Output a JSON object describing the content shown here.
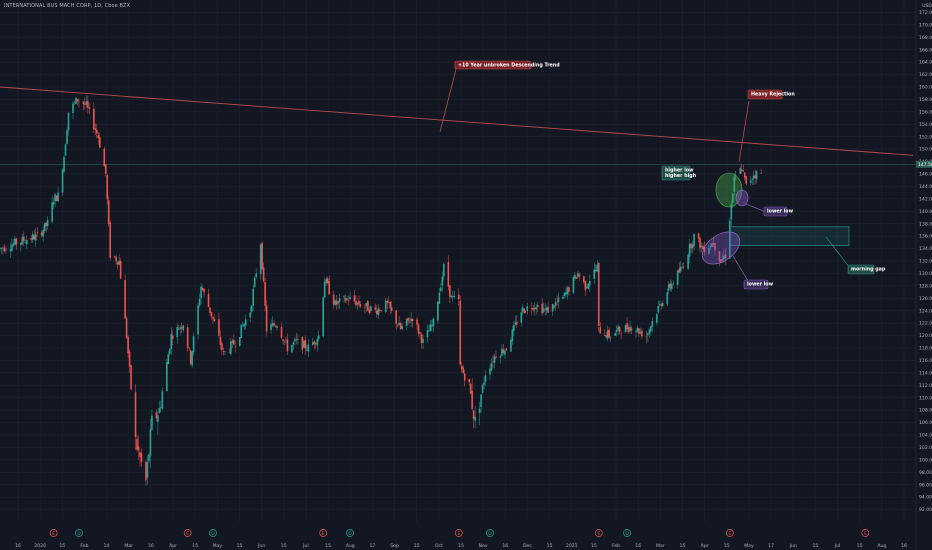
{
  "header": {
    "symbol": "INTERNATIONAL BUS MACH CORP, 1D, Cboe BZX"
  },
  "price_axis": {
    "currency": "USD",
    "last_price": "147.56"
  },
  "colors": {
    "background": "#131722",
    "grid": "#1e222d",
    "up": "#26a69a",
    "down": "#ef5350",
    "trend_line": "#b74a4d",
    "last_price_line": "#2b5f58",
    "axis_text": "#b2b5be"
  },
  "annotations": {
    "trend": "+10 Year unbroken Descending Trend",
    "rejection": "Heavy Rejection",
    "higher": "higher low\nhigher high",
    "lower_low_1": "lower low",
    "lower_low_2": "lower low",
    "gap": "morning gap"
  },
  "events": {
    "earnings_dates": [
      "2020-01-21",
      "2020-04-20",
      "2020-07-20",
      "2020-10-19",
      "2021-01-21",
      "2021-04-19",
      "2021-07-19"
    ],
    "dividend_dates": [
      "2020-02-07",
      "2020-05-07",
      "2020-08-07",
      "2020-11-09",
      "2021-02-09"
    ]
  },
  "chart_data": {
    "type": "candlestick",
    "y_ticks": [
      92.0,
      94.0,
      96.0,
      98.0,
      100.0,
      102.0,
      104.0,
      106.0,
      108.0,
      110.0,
      112.0,
      114.0,
      116.0,
      118.0,
      120.0,
      122.0,
      124.0,
      126.0,
      128.0,
      130.0,
      132.0,
      134.0,
      136.0,
      138.0,
      140.0,
      142.0,
      144.0,
      146.0,
      148.0,
      150.0,
      152.0,
      154.0,
      156.0,
      158.0,
      160.0,
      162.0,
      164.0,
      166.0,
      168.0,
      170.0,
      172.0
    ],
    "ylim": [
      90,
      174
    ],
    "x_ticks": [
      "16",
      "2020",
      "15",
      "Feb",
      "14",
      "Mar",
      "16",
      "Apr",
      "15",
      "May",
      "15",
      "Jun",
      "15",
      "Jul",
      "15",
      "Aug",
      "17",
      "Sep",
      "15",
      "Oct",
      "15",
      "Nov",
      "16",
      "Dec",
      "15",
      "2021",
      "15",
      "Feb",
      "16",
      "Mar",
      "15",
      "Apr",
      "15",
      "May",
      "17",
      "Jun",
      "15",
      "Jul",
      "15",
      "Aug",
      "16"
    ],
    "x_range": [
      "2019-12-16",
      "2021-08-22"
    ],
    "last_price": 147.56,
    "trend_line": {
      "start": [
        "2019-12-16",
        160.0
      ],
      "end": [
        "2021-08-20",
        149.0
      ]
    },
    "anchors": [
      [
        "2019-12-16",
        134.0
      ],
      [
        "2020-01-03",
        135.5
      ],
      [
        "2020-01-10",
        136.0
      ],
      [
        "2020-01-17",
        138.0
      ],
      [
        "2020-01-21",
        142.0
      ],
      [
        "2020-01-24",
        142.5
      ],
      [
        "2020-01-28",
        149.0
      ],
      [
        "2020-01-31",
        156.0
      ],
      [
        "2020-02-06",
        158.0
      ],
      [
        "2020-02-12",
        157.0
      ],
      [
        "2020-02-20",
        152.0
      ],
      [
        "2020-02-25",
        146.0
      ],
      [
        "2020-02-28",
        133.0
      ],
      [
        "2020-03-05",
        132.0
      ],
      [
        "2020-03-10",
        120.0
      ],
      [
        "2020-03-16",
        103.0
      ],
      [
        "2020-03-23",
        96.5
      ],
      [
        "2020-03-27",
        106.0
      ],
      [
        "2020-04-01",
        108.0
      ],
      [
        "2020-04-09",
        120.0
      ],
      [
        "2020-04-17",
        122.0
      ],
      [
        "2020-04-22",
        116.0
      ],
      [
        "2020-04-29",
        128.0
      ],
      [
        "2020-05-08",
        122.0
      ],
      [
        "2020-05-14",
        117.0
      ],
      [
        "2020-05-22",
        119.0
      ],
      [
        "2020-06-01",
        124.0
      ],
      [
        "2020-06-08",
        135.0
      ],
      [
        "2020-06-12",
        121.0
      ],
      [
        "2020-06-19",
        122.0
      ],
      [
        "2020-06-26",
        118.0
      ],
      [
        "2020-07-02",
        119.0
      ],
      [
        "2020-07-10",
        118.0
      ],
      [
        "2020-07-17",
        120.0
      ],
      [
        "2020-07-21",
        129.0
      ],
      [
        "2020-07-28",
        125.0
      ],
      [
        "2020-08-06",
        126.0
      ],
      [
        "2020-08-14",
        125.0
      ],
      [
        "2020-08-24",
        124.0
      ],
      [
        "2020-09-01",
        125.0
      ],
      [
        "2020-09-10",
        121.0
      ],
      [
        "2020-09-18",
        123.0
      ],
      [
        "2020-09-25",
        119.0
      ],
      [
        "2020-10-02",
        122.0
      ],
      [
        "2020-10-09",
        131.0
      ],
      [
        "2020-10-14",
        126.0
      ],
      [
        "2020-10-19",
        125.5
      ],
      [
        "2020-10-20",
        115.0
      ],
      [
        "2020-10-26",
        112.0
      ],
      [
        "2020-10-30",
        106.0
      ],
      [
        "2020-11-06",
        114.0
      ],
      [
        "2020-11-13",
        117.0
      ],
      [
        "2020-11-20",
        118.0
      ],
      [
        "2020-11-30",
        124.0
      ],
      [
        "2020-12-09",
        125.0
      ],
      [
        "2020-12-17",
        124.0
      ],
      [
        "2020-12-28",
        126.0
      ],
      [
        "2021-01-07",
        130.0
      ],
      [
        "2021-01-12",
        128.0
      ],
      [
        "2021-01-20",
        131.0
      ],
      [
        "2021-01-21",
        121.0
      ],
      [
        "2021-01-28",
        120.0
      ],
      [
        "2021-02-05",
        121.0
      ],
      [
        "2021-02-12",
        121.5
      ],
      [
        "2021-02-22",
        120.0
      ],
      [
        "2021-03-01",
        124.0
      ],
      [
        "2021-03-10",
        128.0
      ],
      [
        "2021-03-18",
        131.0
      ],
      [
        "2021-03-26",
        136.0
      ],
      [
        "2021-04-01",
        134.0
      ],
      [
        "2021-04-08",
        135.0
      ],
      [
        "2021-04-13",
        132.0
      ],
      [
        "2021-04-16",
        133.0
      ],
      [
        "2021-04-19",
        139.0
      ],
      [
        "2021-04-22",
        145.0
      ],
      [
        "2021-04-27",
        147.0
      ],
      [
        "2021-04-30",
        144.0
      ],
      [
        "2021-05-05",
        146.0
      ],
      [
        "2021-05-10",
        146.0
      ]
    ],
    "gap_zone": {
      "from": "2021-04-19",
      "to": "2021-07-08",
      "low": 134.5,
      "high": 137.5
    }
  }
}
